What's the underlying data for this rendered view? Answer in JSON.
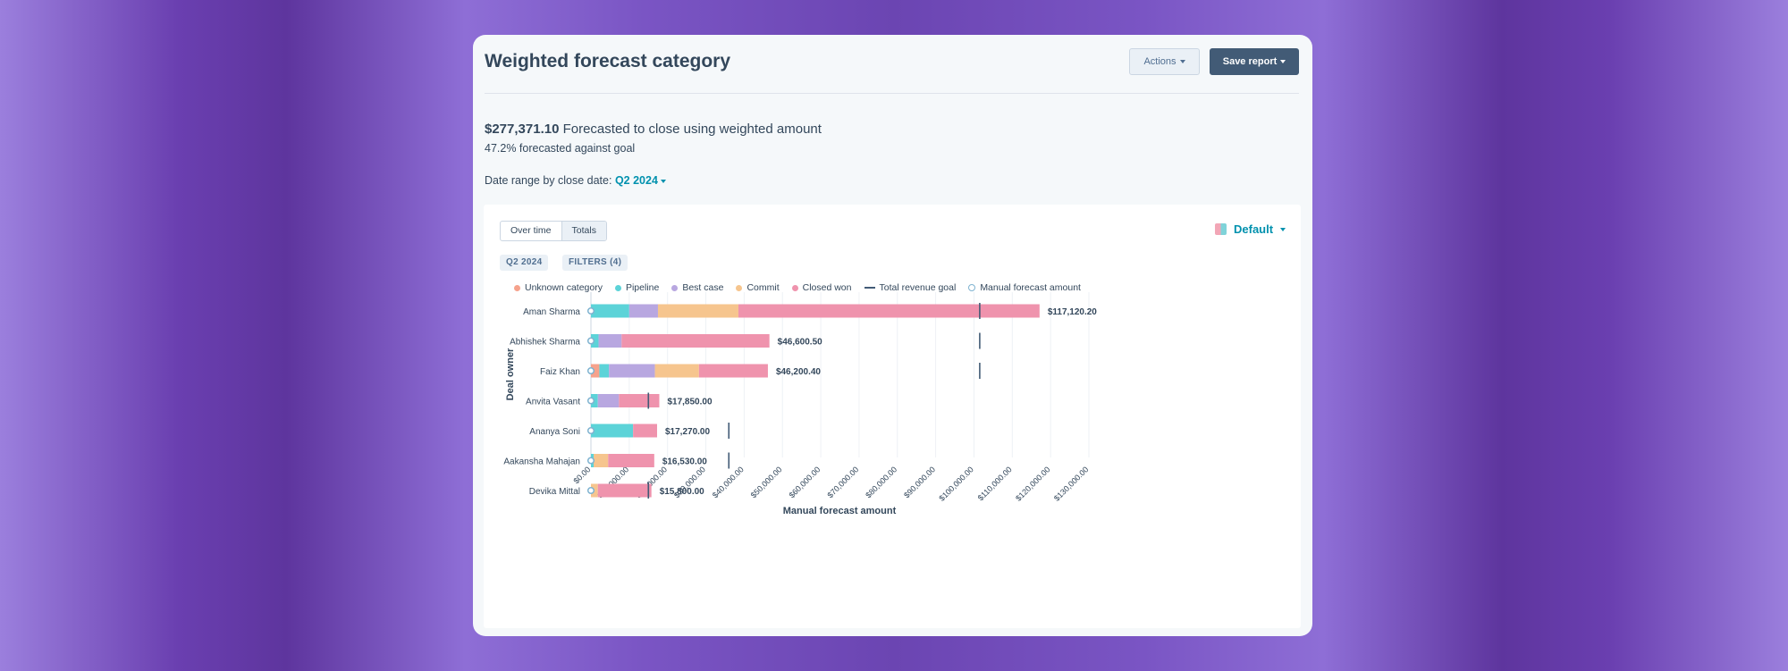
{
  "header": {
    "title": "Weighted forecast category",
    "actions_label": "Actions",
    "save_label": "Save report"
  },
  "summary": {
    "amount": "$277,371.10",
    "amount_text": "Forecasted to close using weighted amount",
    "goal_text": "47.2% forecasted against goal",
    "date_label": "Date range by close date:",
    "date_value": "Q2 2024"
  },
  "panel": {
    "toggle": [
      "Over time",
      "Totals"
    ],
    "active_toggle": "Totals",
    "view_label": "Default",
    "tags": [
      "Q2 2024",
      "FILTERS (4)"
    ]
  },
  "colors": {
    "unknown": "#f6a28c",
    "pipeline": "#5cd3d8",
    "best": "#b8a7e0",
    "commit": "#f6c58e",
    "won": "#ef93ad",
    "goal": "#425b76",
    "manual": "#7fb3d0"
  },
  "chart_data": {
    "type": "bar",
    "orientation": "horizontal",
    "stacked": true,
    "title": "",
    "xlabel": "Manual forecast amount",
    "ylabel": "Deal owner",
    "xlim": [
      0,
      130000
    ],
    "x_ticks": [
      "$0.00",
      "$10,000.00",
      "$20,000.00",
      "$30,000.00",
      "$40,000.00",
      "$50,000.00",
      "$60,000.00",
      "$70,000.00",
      "$80,000.00",
      "$90,000.00",
      "$100,000.00",
      "$110,000.00",
      "$120,000.00",
      "$130,000.00"
    ],
    "legend": [
      "Unknown category",
      "Pipeline",
      "Best case",
      "Commit",
      "Closed won",
      "Total revenue goal",
      "Manual forecast amount"
    ],
    "categories": [
      "Aman Sharma",
      "Abhishek Sharma",
      "Faiz Khan",
      "Anvita Vasant",
      "Ananya Soni",
      "Aakansha Mahajan",
      "Devika Mittal"
    ],
    "series": [
      {
        "name": "Unknown category",
        "key": "unknown",
        "values": [
          0,
          0,
          2200,
          0,
          0,
          0,
          0
        ]
      },
      {
        "name": "Pipeline",
        "key": "pipeline",
        "values": [
          10000,
          2000,
          2500,
          1800,
          11000,
          700,
          0
        ]
      },
      {
        "name": "Best case",
        "key": "best",
        "values": [
          7500,
          6000,
          12000,
          5500,
          0,
          0,
          0
        ]
      },
      {
        "name": "Commit",
        "key": "commit",
        "values": [
          21000,
          0,
          11500,
          0,
          0,
          3800,
          1800
        ]
      },
      {
        "name": "Closed won",
        "key": "won",
        "values": [
          78620.2,
          38600.5,
          18000.4,
          10550,
          6270,
          12030,
          14000
        ]
      }
    ],
    "totals": [
      "$117,120.20",
      "$46,600.50",
      "$46,200.40",
      "$17,850.00",
      "$17,270.00",
      "$16,530.00",
      "$15,800.00"
    ],
    "total_values": [
      117120.2,
      46600.5,
      46200.4,
      17850,
      17270,
      16530,
      15800
    ],
    "revenue_goal": [
      101500,
      101500,
      101500,
      15000,
      36000,
      36000,
      15000
    ],
    "manual_forecast": [
      0,
      0,
      0,
      0,
      0,
      0,
      0
    ]
  }
}
